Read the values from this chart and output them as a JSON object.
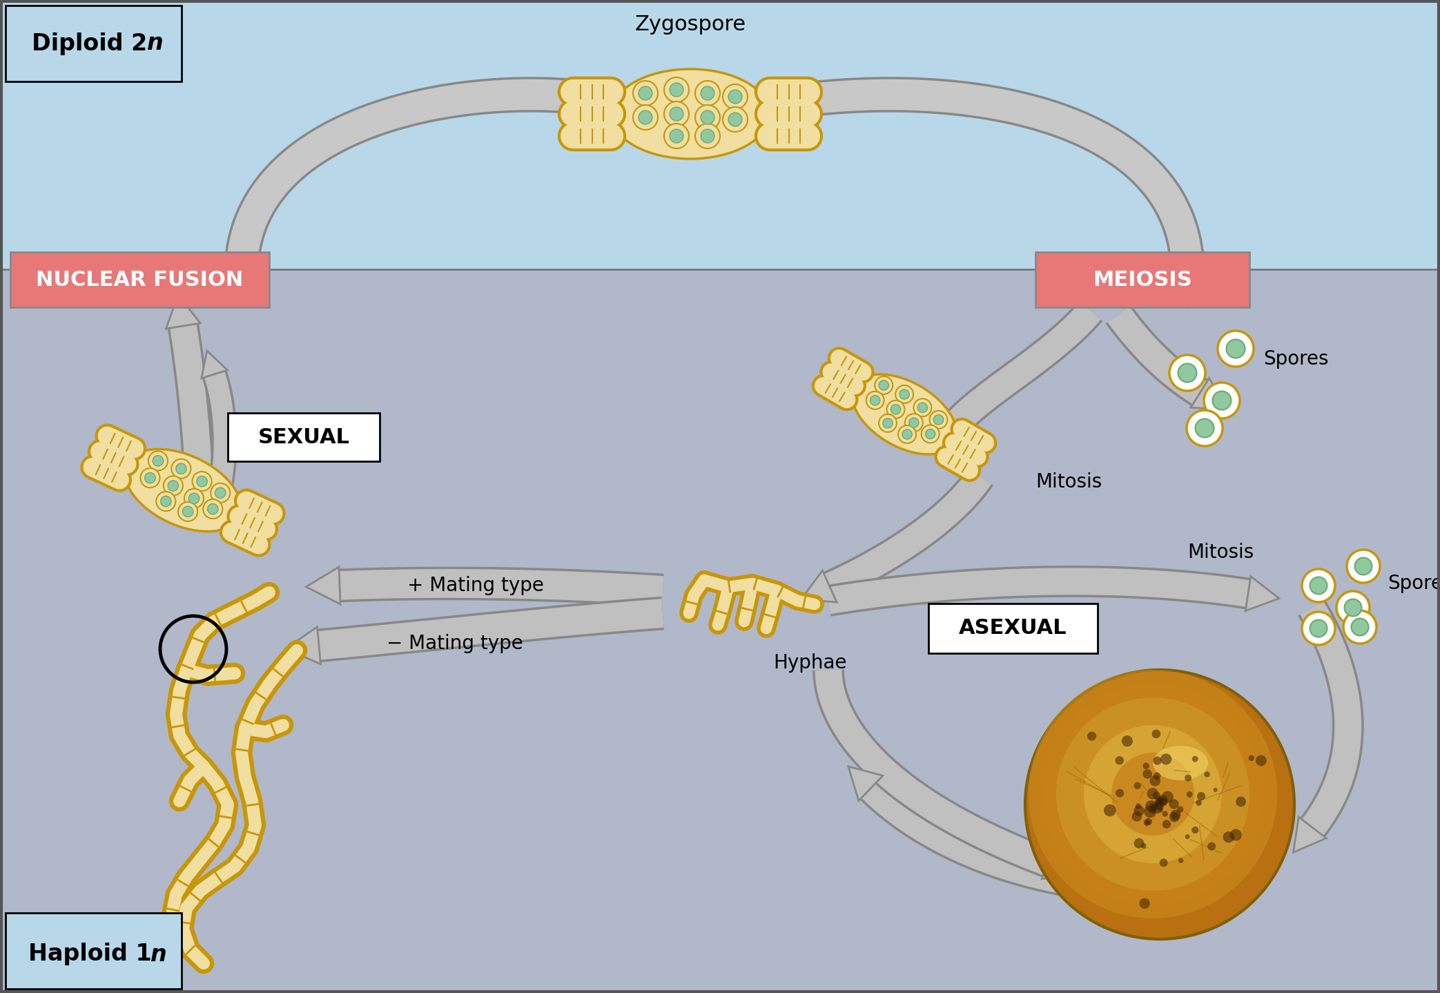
{
  "bg_top_color": "#b8d8ea",
  "bg_bottom_color": "#b0b8ca",
  "outer_border": "#555555",
  "divline_color": "#777777",
  "diploid_label_bold": "Diploid 2",
  "diploid_label_italic": "n",
  "haploid_label_bold": "Haploid 1",
  "haploid_label_italic": "n",
  "nf_label": "NUCLEAR FUSION",
  "meiosis_label": "MEIOSIS",
  "sexual_label": "SEXUAL",
  "asexual_label": "ASEXUAL",
  "zygospore_label": "Zygospore",
  "spores_label": "Spores",
  "mitosis1_label": "Mitosis",
  "mitosis2_label": "Mitosis",
  "plus_mating_label": "+ Mating type",
  "minus_mating_label": "− Mating type",
  "hyphae_label": "Hyphae",
  "red_box_color": "#e87878",
  "white_box_color": "#ffffff",
  "arrow_light": "#c8c8c8",
  "arrow_mid": "#aaaaaa",
  "arrow_dark": "#888888",
  "hyphal_border": "#c8960a",
  "hyphal_fill": "#f0dfa0",
  "spore_green_fill": "#90c8a0",
  "spore_green_border": "#70a870",
  "asex_gold": "#c88010",
  "asex_bright": "#e0a030",
  "fig_width": 20.86,
  "fig_height": 14.38,
  "dpi": 100
}
